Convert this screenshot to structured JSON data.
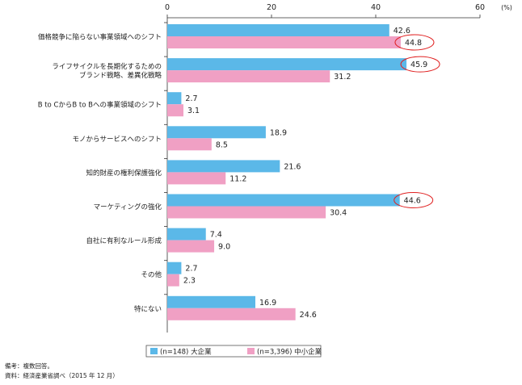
{
  "chart_data": {
    "type": "bar",
    "orientation": "horizontal",
    "unit": "(%)",
    "xlim": [
      0,
      60
    ],
    "ticks": [
      0,
      20,
      40,
      60
    ],
    "categories": [
      [
        "価格競争に陥らない事業領域へのシフト"
      ],
      [
        "ライフサイクルを長期化するための",
        "ブランド戦略、差異化戦略"
      ],
      [
        "B to CからB to Bへの事業領域のシフト"
      ],
      [
        "モノからサービスへのシフト"
      ],
      [
        "知的財産の権利保護強化"
      ],
      [
        "マーケティングの強化"
      ],
      [
        "自社に有利なルール形成"
      ],
      [
        "その他"
      ],
      [
        "特にない"
      ]
    ],
    "series": [
      {
        "name": "(n=148) 大企業",
        "color": "#5bb8e8",
        "values": [
          42.6,
          45.9,
          2.7,
          18.9,
          21.6,
          44.6,
          7.4,
          2.7,
          16.9
        ],
        "labels": [
          "42.6",
          "45.9",
          "2.7",
          "18.9",
          "21.6",
          "44.6",
          "7.4",
          "2.7",
          "16.9"
        ]
      },
      {
        "name": "(n=3,396) 中小企業",
        "color": "#f0a0c4",
        "values": [
          44.8,
          31.2,
          3.1,
          8.5,
          11.2,
          30.4,
          9.0,
          2.3,
          24.6
        ],
        "labels": [
          "44.8",
          "31.2",
          "3.1",
          "8.5",
          "11.2",
          "30.4",
          "9.0",
          "2.3",
          "24.6"
        ]
      }
    ],
    "highlighted": [
      {
        "series": 1,
        "category": 0
      },
      {
        "series": 0,
        "category": 1
      },
      {
        "series": 0,
        "category": 5
      }
    ],
    "highlight_color": "#e02020",
    "legend_position": "bottom-left"
  },
  "notes": {
    "line1": "備考：複数回答。",
    "line2": "資料：経済産業省調べ（2015 年 12 月）"
  }
}
